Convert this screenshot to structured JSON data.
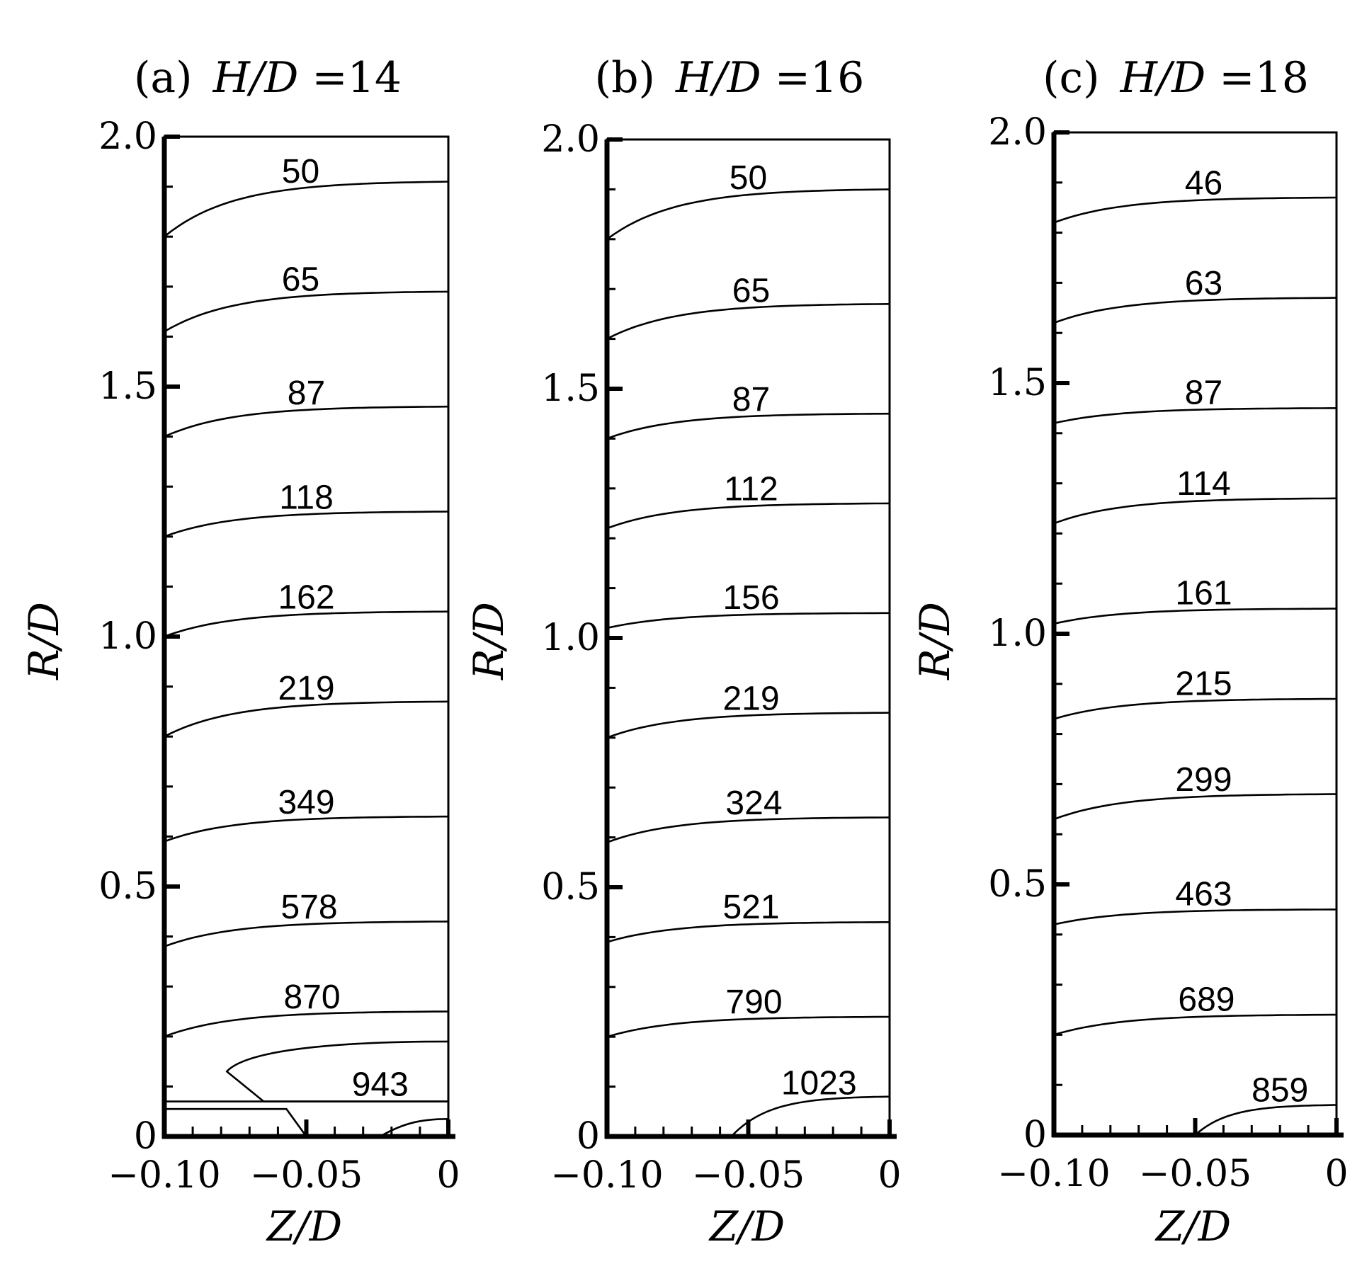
{
  "chart_data": [
    {
      "type": "line",
      "title_prefix": "(a)",
      "title_param": "H/D",
      "title_value": "=14",
      "xlabel": "Z/D",
      "ylabel": "R/D",
      "xlim": [
        -0.1,
        0
      ],
      "ylim": [
        0,
        2.0
      ],
      "x_ticks": [
        "−0.10",
        "−0.05",
        "0"
      ],
      "y_ticks": [
        "0",
        "0.5",
        "1.0",
        "1.5",
        "2.0"
      ],
      "contours": [
        {
          "label": "50",
          "r_wall": 1.8,
          "r_center": 1.91,
          "label_z": -0.052
        },
        {
          "label": "65",
          "r_wall": 1.61,
          "r_center": 1.69,
          "label_z": -0.052
        },
        {
          "label": "87",
          "r_wall": 1.4,
          "r_center": 1.46,
          "label_z": -0.05
        },
        {
          "label": "118",
          "r_wall": 1.2,
          "r_center": 1.25,
          "label_z": -0.05
        },
        {
          "label": "162",
          "r_wall": 1.0,
          "r_center": 1.05,
          "label_z": -0.05
        },
        {
          "label": "219",
          "r_wall": 0.8,
          "r_center": 0.87,
          "label_z": -0.05
        },
        {
          "label": "349",
          "r_wall": 0.59,
          "r_center": 0.64,
          "label_z": -0.05
        },
        {
          "label": "578",
          "r_wall": 0.38,
          "r_center": 0.43,
          "label_z": -0.049
        },
        {
          "label": "870",
          "r_wall": 0.2,
          "r_center": 0.25,
          "label_z": -0.048
        },
        {
          "label": "943",
          "r_wall": 0.07,
          "r_center": 0.07,
          "label_z": -0.024,
          "closed_lobe": true,
          "lobe_top": 0.19,
          "lobe_tip_z": -0.078,
          "lobe_tip_r": 0.13
        }
      ]
    },
    {
      "type": "line",
      "title_prefix": "(b)",
      "title_param": "H/D",
      "title_value": "=16",
      "xlabel": "Z/D",
      "ylabel": "R/D",
      "xlim": [
        -0.1,
        0
      ],
      "ylim": [
        0,
        2.0
      ],
      "x_ticks": [
        "−0.10",
        "−0.05",
        "0"
      ],
      "y_ticks": [
        "0",
        "0.5",
        "1.0",
        "1.5",
        "2.0"
      ],
      "contours": [
        {
          "label": "50",
          "r_wall": 1.8,
          "r_center": 1.9,
          "label_z": -0.05
        },
        {
          "label": "65",
          "r_wall": 1.6,
          "r_center": 1.67,
          "label_z": -0.049
        },
        {
          "label": "87",
          "r_wall": 1.4,
          "r_center": 1.45,
          "label_z": -0.049
        },
        {
          "label": "112",
          "r_wall": 1.22,
          "r_center": 1.27,
          "label_z": -0.049
        },
        {
          "label": "156",
          "r_wall": 1.02,
          "r_center": 1.05,
          "label_z": -0.049
        },
        {
          "label": "219",
          "r_wall": 0.8,
          "r_center": 0.85,
          "label_z": -0.049
        },
        {
          "label": "324",
          "r_wall": 0.59,
          "r_center": 0.64,
          "label_z": -0.048
        },
        {
          "label": "521",
          "r_wall": 0.39,
          "r_center": 0.43,
          "label_z": -0.049
        },
        {
          "label": "790",
          "r_wall": 0.2,
          "r_center": 0.24,
          "label_z": -0.048
        },
        {
          "label": "1023",
          "r_wall": 0.0,
          "r_center": 0.08,
          "label_z": -0.025,
          "start_z": -0.056
        }
      ]
    },
    {
      "type": "line",
      "title_prefix": "(c)",
      "title_param": "H/D",
      "title_value": "=18",
      "xlabel": "Z/D",
      "ylabel": "R/D",
      "xlim": [
        -0.1,
        0
      ],
      "ylim": [
        0,
        2.0
      ],
      "x_ticks": [
        "−0.10",
        "−0.05",
        "0"
      ],
      "y_ticks": [
        "0",
        "0.5",
        "1.0",
        "1.5",
        "2.0"
      ],
      "contours": [
        {
          "label": "46",
          "r_wall": 1.82,
          "r_center": 1.87,
          "label_z": -0.047
        },
        {
          "label": "63",
          "r_wall": 1.62,
          "r_center": 1.67,
          "label_z": -0.047
        },
        {
          "label": "87",
          "r_wall": 1.42,
          "r_center": 1.45,
          "label_z": -0.047
        },
        {
          "label": "114",
          "r_wall": 1.22,
          "r_center": 1.27,
          "label_z": -0.047
        },
        {
          "label": "161",
          "r_wall": 1.02,
          "r_center": 1.05,
          "label_z": -0.047
        },
        {
          "label": "215",
          "r_wall": 0.83,
          "r_center": 0.87,
          "label_z": -0.047
        },
        {
          "label": "299",
          "r_wall": 0.63,
          "r_center": 0.68,
          "label_z": -0.047
        },
        {
          "label": "463",
          "r_wall": 0.42,
          "r_center": 0.45,
          "label_z": -0.047
        },
        {
          "label": "689",
          "r_wall": 0.2,
          "r_center": 0.24,
          "label_z": -0.046
        },
        {
          "label": "859",
          "r_wall": 0.0,
          "r_center": 0.06,
          "label_z": -0.02,
          "start_z": -0.05
        }
      ]
    }
  ]
}
